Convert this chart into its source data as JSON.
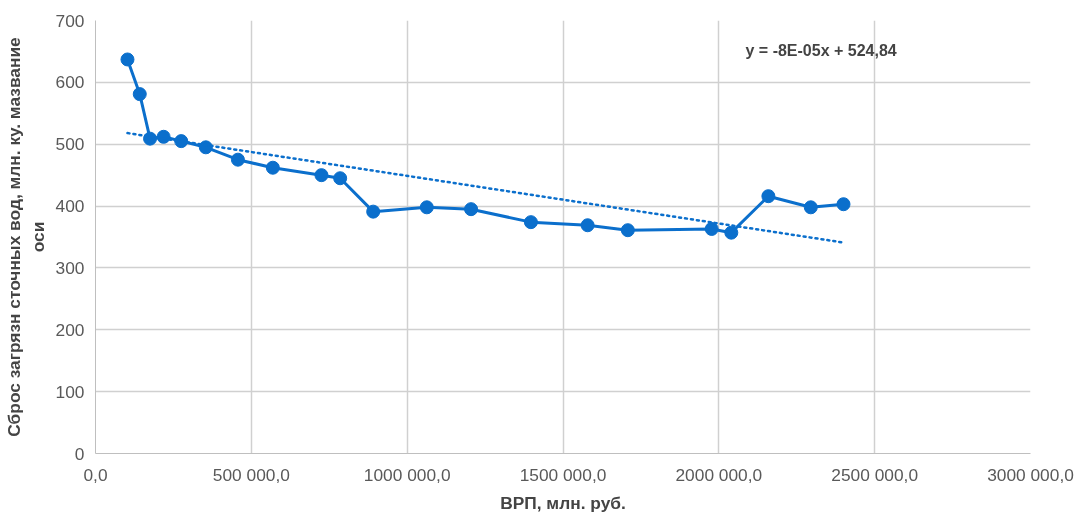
{
  "chart_data": {
    "type": "line",
    "xlabel": "ВРП, млн. руб.",
    "ylabel": "Сброс загрязн сточных вод, млн. ку. мазвание оси",
    "xlim": [
      0,
      3000000
    ],
    "ylim": [
      0,
      700
    ],
    "xticks": [
      {
        "value": 0,
        "label": "0,0"
      },
      {
        "value": 500000,
        "label": "500 000,0"
      },
      {
        "value": 1000000,
        "label": "1000 000,0"
      },
      {
        "value": 1500000,
        "label": "1500 000,0"
      },
      {
        "value": 2000000,
        "label": "2000 000,0"
      },
      {
        "value": 2500000,
        "label": "2500 000,0"
      },
      {
        "value": 3000000,
        "label": "3000 000,0"
      }
    ],
    "yticks": [
      0,
      100,
      200,
      300,
      400,
      500,
      600,
      700
    ],
    "grid": true,
    "marker": "circle",
    "line_style": "solid",
    "annotations": [
      "y = -8E-05x + 524,84"
    ],
    "series": [
      {
        "color": "#0b6fcc",
        "x": [
          102600,
          142000,
          175000,
          218500,
          275000,
          354000,
          457000,
          569000,
          725000,
          785000,
          891000,
          1063000,
          1205000,
          1397000,
          1579000,
          1708000,
          1977000,
          2040000,
          2159000,
          2295000,
          2400000
        ],
        "values": [
          637,
          581,
          509,
          512,
          505,
          495,
          475,
          462,
          450,
          445,
          391,
          398,
          395,
          374,
          369,
          361,
          363,
          357,
          416,
          398,
          403
        ]
      },
      {
        "type": "line",
        "color": "#0b6fcc",
        "marker": "none",
        "line_style": "dotted",
        "x": [
          102600,
          2400000
        ],
        "values": [
          518,
          341
        ]
      }
    ]
  }
}
